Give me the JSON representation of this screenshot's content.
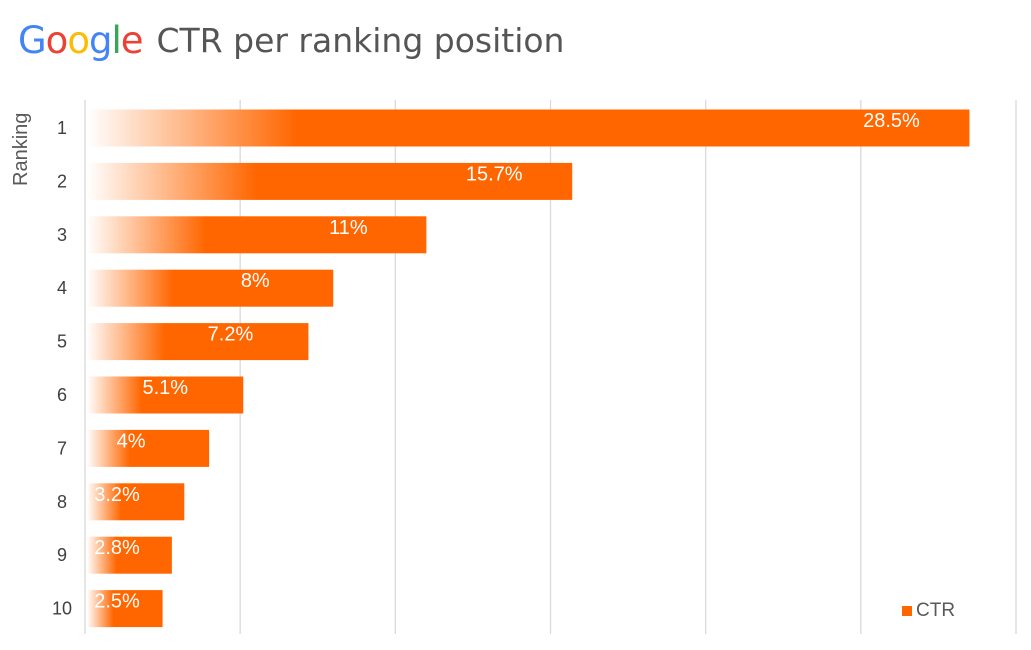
{
  "logo": {
    "text": "Google",
    "letter_colors": [
      "#4285F4",
      "#EA4335",
      "#FBBC05",
      "#4285F4",
      "#34A853",
      "#EA4335"
    ]
  },
  "title": "CTR per ranking position",
  "colors": {
    "bar": "#ff6600",
    "grid": "#d9d9d9",
    "tick_text": "#404040"
  },
  "chart_data": {
    "type": "bar",
    "orientation": "horizontal",
    "title": "CTR per ranking position",
    "ylabel": "Ranking",
    "xlabel": "",
    "categories": [
      "1",
      "2",
      "3",
      "4",
      "5",
      "6",
      "7",
      "8",
      "9",
      "10"
    ],
    "series": [
      {
        "name": "CTR",
        "values": [
          28.5,
          15.7,
          11,
          8,
          7.2,
          5.1,
          4,
          3.2,
          2.8,
          2.5
        ],
        "labels": [
          "28.5%",
          "15.7%",
          "11%",
          "8%",
          "7.2%",
          "5.1%",
          "4%",
          "3.2%",
          "2.8%",
          "2.5%"
        ]
      }
    ],
    "xlim": [
      0,
      30
    ],
    "grid": true,
    "gridlines_at": [
      0,
      5,
      10,
      15,
      20,
      25,
      30
    ],
    "legend_position": "bottom-right"
  }
}
